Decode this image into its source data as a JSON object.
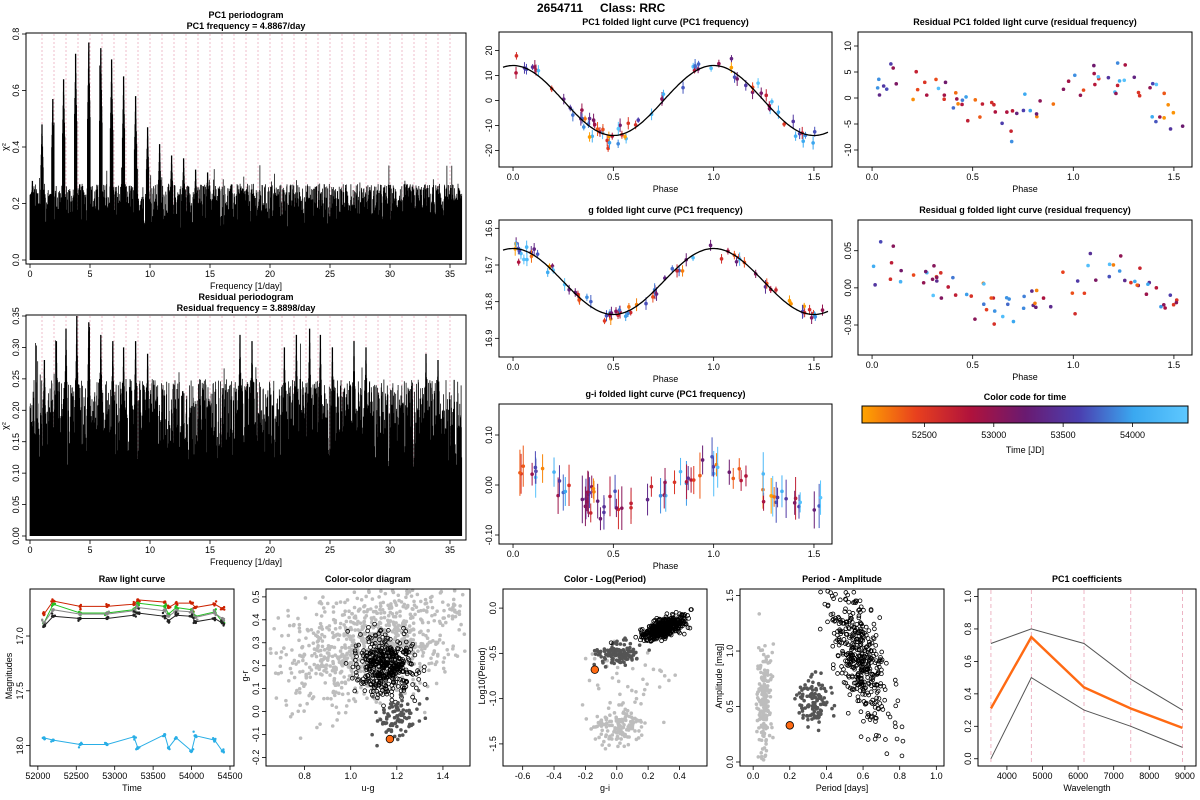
{
  "header": {
    "star_id": "2654711",
    "class_label": "Class: RRC"
  },
  "colors": {
    "grid_pink": "#e9a3b6",
    "orange_highlight": "#ff6a13",
    "series_red": "#cc2200",
    "series_green": "#22c022",
    "series_blue": "#29aee6",
    "series_gray": "#888888",
    "cloud_gray": "#bdbdbd",
    "dark_gray": "#555555"
  },
  "colorbar": {
    "title": "Color code for time",
    "xlabel": "Time [JD]",
    "ticks": [
      52500,
      53000,
      53500,
      54000
    ],
    "range": [
      52050,
      54400
    ],
    "stops": [
      "#ffa500",
      "#e8401e",
      "#b0123c",
      "#6a1a70",
      "#4b3fb0",
      "#3aa8f0",
      "#5ec8ff"
    ]
  },
  "chart_data": [
    {
      "id": "pc1_periodogram",
      "type": "bar",
      "title": "PC1 periodogram",
      "subtitle": "PC1 frequency = 4.8867/day",
      "xlabel": "Frequency [1/day]",
      "ylabel": "χ²",
      "xlim": [
        0,
        36
      ],
      "ylim": [
        0,
        0.8
      ],
      "xticks": [
        0,
        5,
        10,
        15,
        20,
        25,
        30,
        35
      ],
      "yticks": [
        0.0,
        0.2,
        0.4,
        0.6,
        0.8
      ],
      "ytick_labels": [
        "0.0",
        "0.2",
        "0.4",
        "0.6",
        "0.8"
      ],
      "peak_x": [
        0.2,
        1.0,
        1.9,
        2.8,
        3.8,
        4.9,
        5.9,
        6.8,
        7.8,
        8.8,
        9.8,
        10.8,
        11.8,
        12.8,
        13.8,
        14.8
      ],
      "peak_y": [
        0.28,
        0.48,
        0.57,
        0.64,
        0.73,
        0.77,
        0.75,
        0.71,
        0.65,
        0.58,
        0.47,
        0.41,
        0.37,
        0.36,
        0.32,
        0.31
      ],
      "background_level": 0.27
    },
    {
      "id": "residual_periodogram",
      "type": "bar",
      "title": "Residual periodogram",
      "subtitle": "Residual frequency = 3.8898/day",
      "xlabel": "Frequency [1/day]",
      "ylabel": "χ²",
      "xlim": [
        0,
        36
      ],
      "ylim": [
        0,
        0.35
      ],
      "xticks": [
        0,
        5,
        10,
        15,
        20,
        25,
        30,
        35
      ],
      "yticks": [
        0.0,
        0.05,
        0.1,
        0.15,
        0.2,
        0.25,
        0.3,
        0.35
      ],
      "ytick_labels": [
        "0.00",
        "0.05",
        "0.10",
        "0.15",
        "0.20",
        "0.25",
        "0.30",
        "0.35"
      ],
      "peak_x": [
        0.3,
        1.2,
        2.2,
        3.0,
        3.9,
        4.9,
        5.9,
        6.9,
        7.8,
        8.8,
        9.8,
        17.5,
        18.5,
        21.2,
        22.2,
        23.3,
        24.2,
        25.2,
        27.0,
        28.0,
        33.0,
        34.0
      ],
      "peak_y": [
        0.22,
        0.28,
        0.31,
        0.33,
        0.35,
        0.34,
        0.32,
        0.31,
        0.3,
        0.31,
        0.29,
        0.32,
        0.31,
        0.3,
        0.32,
        0.33,
        0.32,
        0.3,
        0.31,
        0.3,
        0.29,
        0.28
      ],
      "background_level": 0.25
    },
    {
      "id": "pc1_folded",
      "type": "scatter",
      "title": "PC1 folded light curve (PC1 frequency)",
      "xlabel": "Phase",
      "ylabel": "",
      "xlim": [
        -0.05,
        1.57
      ],
      "ylim": [
        -25,
        27
      ],
      "xticks": [
        0.0,
        0.5,
        1.0,
        1.5
      ],
      "xtick_labels": [
        "0.0",
        "0.5",
        "1.0",
        "1.5"
      ],
      "yticks": [
        -20,
        -10,
        0,
        10,
        20
      ],
      "ytick_labels": [
        "-20",
        "-10",
        "0",
        "10",
        "20"
      ],
      "model": {
        "amplitude": 14,
        "offset": 0,
        "phase_shift": 0.0
      },
      "n_points": 78,
      "scatter": 4,
      "errorbar": 1.8
    },
    {
      "id": "g_folded",
      "type": "scatter",
      "title": "g folded light curve (PC1 frequency)",
      "xlabel": "Phase",
      "ylabel": "",
      "xlim": [
        -0.05,
        1.57
      ],
      "ylim": [
        16.94,
        16.58
      ],
      "xticks": [
        0.0,
        0.5,
        1.0,
        1.5
      ],
      "xtick_labels": [
        "0.0",
        "0.5",
        "1.0",
        "1.5"
      ],
      "yticks": [
        16.6,
        16.7,
        16.8,
        16.9
      ],
      "ytick_labels": [
        "16.6",
        "16.7",
        "16.8",
        "16.9"
      ],
      "model": {
        "amplitude": 0.09,
        "offset": 16.745,
        "phase_shift": 0.5
      },
      "n_points": 78,
      "scatter": 0.025,
      "errorbar": 0.012
    },
    {
      "id": "gi_folded",
      "type": "scatter",
      "title": "g-i folded light curve (PC1 frequency)",
      "xlabel": "Phase",
      "ylabel": "",
      "xlim": [
        -0.05,
        1.57
      ],
      "ylim": [
        -0.11,
        0.16
      ],
      "xticks": [
        0.0,
        0.5,
        1.0,
        1.5
      ],
      "xtick_labels": [
        "0.0",
        "0.5",
        "1.0",
        "1.5"
      ],
      "yticks": [
        -0.1,
        0.0,
        0.1
      ],
      "ytick_labels": [
        "-0.10",
        "0.00",
        "0.10"
      ],
      "model": {
        "amplitude": 0.035,
        "offset": -0.005,
        "phase_shift": 0.0
      },
      "n_points": 78,
      "scatter": 0.03,
      "errorbar": 0.03
    },
    {
      "id": "residual_pc1_folded",
      "type": "scatter",
      "title": "Residual PC1 folded light curve (residual frequency)",
      "xlabel": "Phase",
      "ylabel": "",
      "xlim": [
        -0.05,
        1.57
      ],
      "ylim": [
        -12.5,
        12.5
      ],
      "xticks": [
        0.0,
        0.5,
        1.0,
        1.5
      ],
      "xtick_labels": [
        "0.0",
        "0.5",
        "1.0",
        "1.5"
      ],
      "yticks": [
        -10,
        -5,
        0,
        5,
        10
      ],
      "ytick_labels": [
        "-10",
        "-5",
        "0",
        "5",
        "10"
      ],
      "model": {
        "amplitude": 4,
        "offset": 0,
        "phase_shift": 0.15
      },
      "n_points": 78,
      "scatter": 4.5
    },
    {
      "id": "residual_g_folded",
      "type": "scatter",
      "title": "Residual g folded light curve (residual frequency)",
      "xlabel": "Phase",
      "ylabel": "",
      "xlim": [
        -0.05,
        1.57
      ],
      "ylim": [
        -0.085,
        0.09
      ],
      "xticks": [
        0.0,
        0.5,
        1.0,
        1.5
      ],
      "xtick_labels": [
        "0.0",
        "0.5",
        "1.0",
        "1.5"
      ],
      "yticks": [
        -0.05,
        0.0,
        0.05
      ],
      "ytick_labels": [
        "-0.05",
        "0.00",
        "0.05"
      ],
      "model": {
        "amplitude": 0.025,
        "offset": 0,
        "phase_shift": 0.15
      },
      "n_points": 78,
      "scatter": 0.03
    },
    {
      "id": "raw_light_curve",
      "type": "line",
      "title": "Raw light curve",
      "xlabel": "Time",
      "ylabel": "Magnitudes",
      "xlim": [
        51950,
        54500
      ],
      "ylim": [
        18.15,
        16.58
      ],
      "xticks": [
        52000,
        52500,
        53000,
        53500,
        54000,
        54500
      ],
      "yticks": [
        17.0,
        17.5,
        18.0
      ],
      "ytick_labels": [
        "17.0",
        "17.5",
        "18.0"
      ],
      "x": [
        52200,
        52550,
        52900,
        53250,
        53300,
        53650,
        53700,
        53800,
        54000,
        54050,
        54300,
        54400
      ],
      "series": [
        {
          "name": "red",
          "color": "#cc2200",
          "values": [
            16.68,
            16.73,
            16.73,
            16.71,
            16.67,
            16.69,
            16.74,
            16.7,
            16.7,
            16.74,
            16.71,
            16.75
          ]
        },
        {
          "name": "green",
          "color": "#22c022",
          "values": [
            16.71,
            16.79,
            16.79,
            16.76,
            16.7,
            16.73,
            16.8,
            16.74,
            16.76,
            16.82,
            16.78,
            16.87
          ]
        },
        {
          "name": "gray",
          "color": "#888888",
          "values": [
            16.76,
            16.8,
            16.8,
            16.77,
            16.74,
            16.77,
            16.82,
            16.77,
            16.78,
            16.83,
            16.79,
            16.84
          ]
        },
        {
          "name": "black",
          "color": "#222222",
          "values": [
            16.82,
            16.84,
            16.84,
            16.81,
            16.79,
            16.82,
            16.86,
            16.81,
            16.82,
            16.87,
            16.84,
            16.88
          ]
        },
        {
          "name": "blue",
          "color": "#29aee6",
          "values": [
            17.95,
            17.99,
            17.99,
            17.92,
            18.02,
            17.9,
            18.02,
            17.93,
            18.05,
            17.91,
            17.95,
            18.05
          ]
        }
      ],
      "first_point": {
        "x": 52080,
        "values": [
          16.8,
          16.88,
          16.88,
          16.91,
          17.93
        ]
      }
    },
    {
      "id": "color_color",
      "type": "scatter",
      "title": "Color-color diagram",
      "xlabel": "u-g",
      "ylabel": "g-r",
      "xlim": [
        0.65,
        1.5
      ],
      "ylim": [
        -0.22,
        0.53
      ],
      "xticks": [
        0.8,
        1.0,
        1.2,
        1.4
      ],
      "xtick_labels": [
        "0.8",
        "1.0",
        "1.2",
        "1.4"
      ],
      "yticks": [
        -0.2,
        -0.1,
        0.0,
        0.1,
        0.2,
        0.3,
        0.4,
        0.5
      ],
      "ytick_labels": [
        "-0.2",
        "-0.1",
        "0.0",
        "0.1",
        "0.2",
        "0.3",
        "0.4",
        "0.5"
      ],
      "highlight": {
        "x": 1.17,
        "y": -0.12
      },
      "clusters": [
        {
          "kind": "gray",
          "cx": 1.1,
          "cy": 0.3,
          "sx": 0.2,
          "sy": 0.12,
          "n": 900,
          "trend": 0.3
        },
        {
          "kind": "open",
          "cx": 1.15,
          "cy": 0.2,
          "sx": 0.06,
          "sy": 0.06,
          "n": 420,
          "trend": 0.0
        },
        {
          "kind": "dark",
          "cx": 1.2,
          "cy": -0.02,
          "sx": 0.05,
          "sy": 0.05,
          "n": 90,
          "trend": 0.0
        }
      ]
    },
    {
      "id": "color_log_period",
      "type": "scatter",
      "title": "Color - Log(Period)",
      "xlabel": "g-i",
      "ylabel": "Log10(Period)",
      "xlim": [
        -0.7,
        0.55
      ],
      "ylim": [
        -1.7,
        0.2
      ],
      "xticks": [
        -0.6,
        -0.4,
        -0.2,
        0.0,
        0.2,
        0.4
      ],
      "xtick_labels": [
        "-0.6",
        "-0.4",
        "-0.2",
        "0.0",
        "0.2",
        "0.4"
      ],
      "yticks": [
        -1.5,
        -1.0,
        -0.5,
        0.0
      ],
      "ytick_labels": [
        "-1.5",
        "-1.0",
        "-0.5",
        "0.0"
      ],
      "highlight": {
        "x": -0.14,
        "y": -0.68
      },
      "clusters": [
        {
          "kind": "gray",
          "cx": 0.0,
          "cy": -1.3,
          "sx": 0.08,
          "sy": 0.1,
          "n": 140,
          "trend": 0.0
        },
        {
          "kind": "gray",
          "cx": 0.05,
          "cy": -0.75,
          "sx": 0.15,
          "sy": 0.2,
          "n": 40,
          "trend": 0.0
        },
        {
          "kind": "dark",
          "cx": 0.02,
          "cy": -0.5,
          "sx": 0.07,
          "sy": 0.06,
          "n": 120,
          "trend": 0.0
        },
        {
          "kind": "open",
          "cx": 0.3,
          "cy": -0.22,
          "sx": 0.07,
          "sy": 0.05,
          "n": 420,
          "trend": 0.6
        }
      ]
    },
    {
      "id": "period_amplitude",
      "type": "scatter",
      "title": "Period - Amplitude",
      "xlabel": "Period [days]",
      "ylabel": "Amplitude [mag]",
      "xlim": [
        -0.05,
        1.02
      ],
      "ylim": [
        0.0,
        1.55
      ],
      "xticks": [
        0.0,
        0.2,
        0.4,
        0.6,
        0.8,
        1.0
      ],
      "xtick_labels": [
        "0.0",
        "0.2",
        "0.4",
        "0.6",
        "0.8",
        "1.0"
      ],
      "yticks": [
        0.0,
        0.5,
        1.0,
        1.5
      ],
      "ytick_labels": [
        "0.0",
        "0.5",
        "1.0",
        "1.5"
      ],
      "highlight": {
        "x": 0.2,
        "y": 0.33
      },
      "clusters": [
        {
          "kind": "gray",
          "cx": 0.06,
          "cy": 0.55,
          "sx": 0.02,
          "sy": 0.25,
          "n": 180,
          "trend": 0.0
        },
        {
          "kind": "dark",
          "cx": 0.33,
          "cy": 0.55,
          "sx": 0.04,
          "sy": 0.1,
          "n": 110,
          "trend": 0.0
        },
        {
          "kind": "open",
          "cx": 0.58,
          "cy": 0.95,
          "sx": 0.08,
          "sy": 0.25,
          "n": 420,
          "trend": -2.5
        }
      ]
    },
    {
      "id": "pc1_coefficients",
      "type": "line",
      "title": "PC1 coefficients",
      "xlabel": "Wavelength",
      "ylabel": "",
      "xlim": [
        3300,
        9200
      ],
      "ylim": [
        -0.02,
        1.04
      ],
      "xticks": [
        4000,
        5000,
        6000,
        7000,
        8000,
        9000
      ],
      "yticks": [
        0.0,
        0.2,
        0.4,
        0.6,
        0.8,
        1.0
      ],
      "ytick_labels": [
        "0.0",
        "0.2",
        "0.4",
        "0.6",
        "0.8",
        "1.0"
      ],
      "x": [
        3551,
        4686,
        6166,
        7480,
        8932
      ],
      "series": [
        {
          "name": "coefficient",
          "color": "#ff6a13",
          "values": [
            0.31,
            0.75,
            0.44,
            0.31,
            0.19
          ]
        },
        {
          "name": "upper",
          "color": "#555555",
          "values": [
            0.71,
            0.8,
            0.71,
            0.49,
            0.3
          ]
        },
        {
          "name": "lower",
          "color": "#555555",
          "values": [
            0.0,
            0.5,
            0.3,
            0.2,
            0.07
          ]
        }
      ]
    }
  ]
}
